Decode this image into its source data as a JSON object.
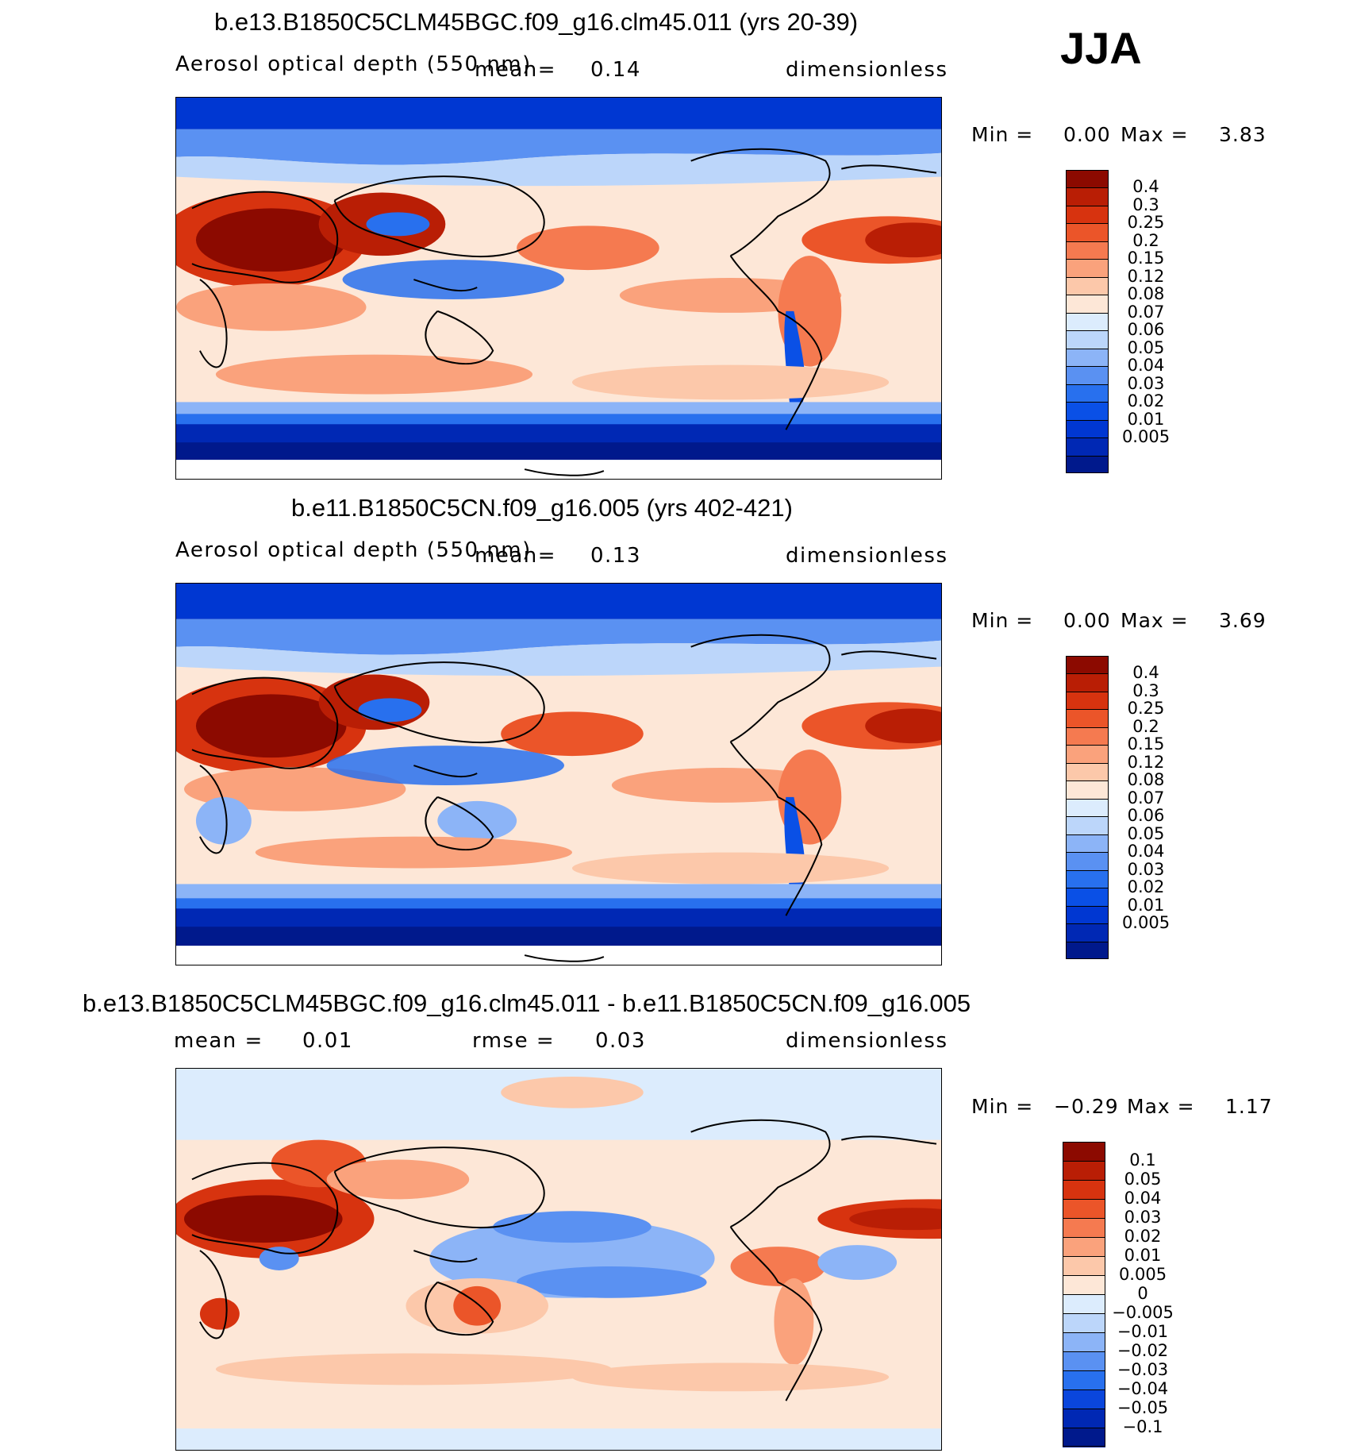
{
  "season": "JJA",
  "colors": {
    "sequential": [
      "#00198c",
      "#0028b4",
      "#0037d2",
      "#0a50e6",
      "#2870ee",
      "#5a91f2",
      "#8cb4f7",
      "#bcd6fa",
      "#dcecfd",
      "#fde7d7",
      "#fcc8aa",
      "#faa27c",
      "#f57a50",
      "#eb5529",
      "#d7330f",
      "#b91e05",
      "#8c0a00"
    ],
    "diverging": [
      "#00198c",
      "#0028b4",
      "#0a46dc",
      "#2870ee",
      "#5a91f2",
      "#8cb4f7",
      "#bcd6fa",
      "#dcecfd",
      "#fde7d7",
      "#fcc8aa",
      "#faa27c",
      "#f57a50",
      "#eb5529",
      "#d7330f",
      "#b91e05",
      "#8c0a00"
    ]
  },
  "panels": [
    {
      "title": "b.e13.B1850C5CLM45BGC.f09_g16.clm45.011 (yrs 20-39)",
      "variable": "Aerosol optical depth (550 nm)",
      "mean_label": "mean=",
      "mean": "0.14",
      "units": "dimensionless",
      "min_label": "Min =",
      "min": "0.00",
      "max_label": "Max =",
      "max": "3.83",
      "levels": [
        "0.4",
        "0.3",
        "0.25",
        "0.2",
        "0.15",
        "0.12",
        "0.08",
        "0.07",
        "0.06",
        "0.05",
        "0.04",
        "0.03",
        "0.02",
        "0.01",
        "0.005"
      ]
    },
    {
      "title": "b.e11.B1850C5CN.f09_g16.005 (yrs 402-421)",
      "variable": "Aerosol optical depth (550 nm)",
      "mean_label": "mean=",
      "mean": "0.13",
      "units": "dimensionless",
      "min_label": "Min =",
      "min": "0.00",
      "max_label": "Max =",
      "max": "3.69",
      "levels": [
        "0.4",
        "0.3",
        "0.25",
        "0.2",
        "0.15",
        "0.12",
        "0.08",
        "0.07",
        "0.06",
        "0.05",
        "0.04",
        "0.03",
        "0.02",
        "0.01",
        "0.005"
      ]
    },
    {
      "title": "b.e13.B1850C5CLM45BGC.f09_g16.clm45.011 - b.e11.B1850C5CN.f09_g16.005",
      "mean_label": "mean =",
      "mean": "0.01",
      "rmse_label": "rmse =",
      "rmse": "0.03",
      "units": "dimensionless",
      "min_label": "Min =",
      "min": "−0.29",
      "max_label": "Max =",
      "max": "1.17",
      "levels": [
        "0.1",
        "0.05",
        "0.04",
        "0.03",
        "0.02",
        "0.01",
        "0.005",
        "0",
        "−0.005",
        "−0.01",
        "−0.02",
        "−0.03",
        "−0.04",
        "−0.05",
        "−0.1"
      ]
    }
  ]
}
